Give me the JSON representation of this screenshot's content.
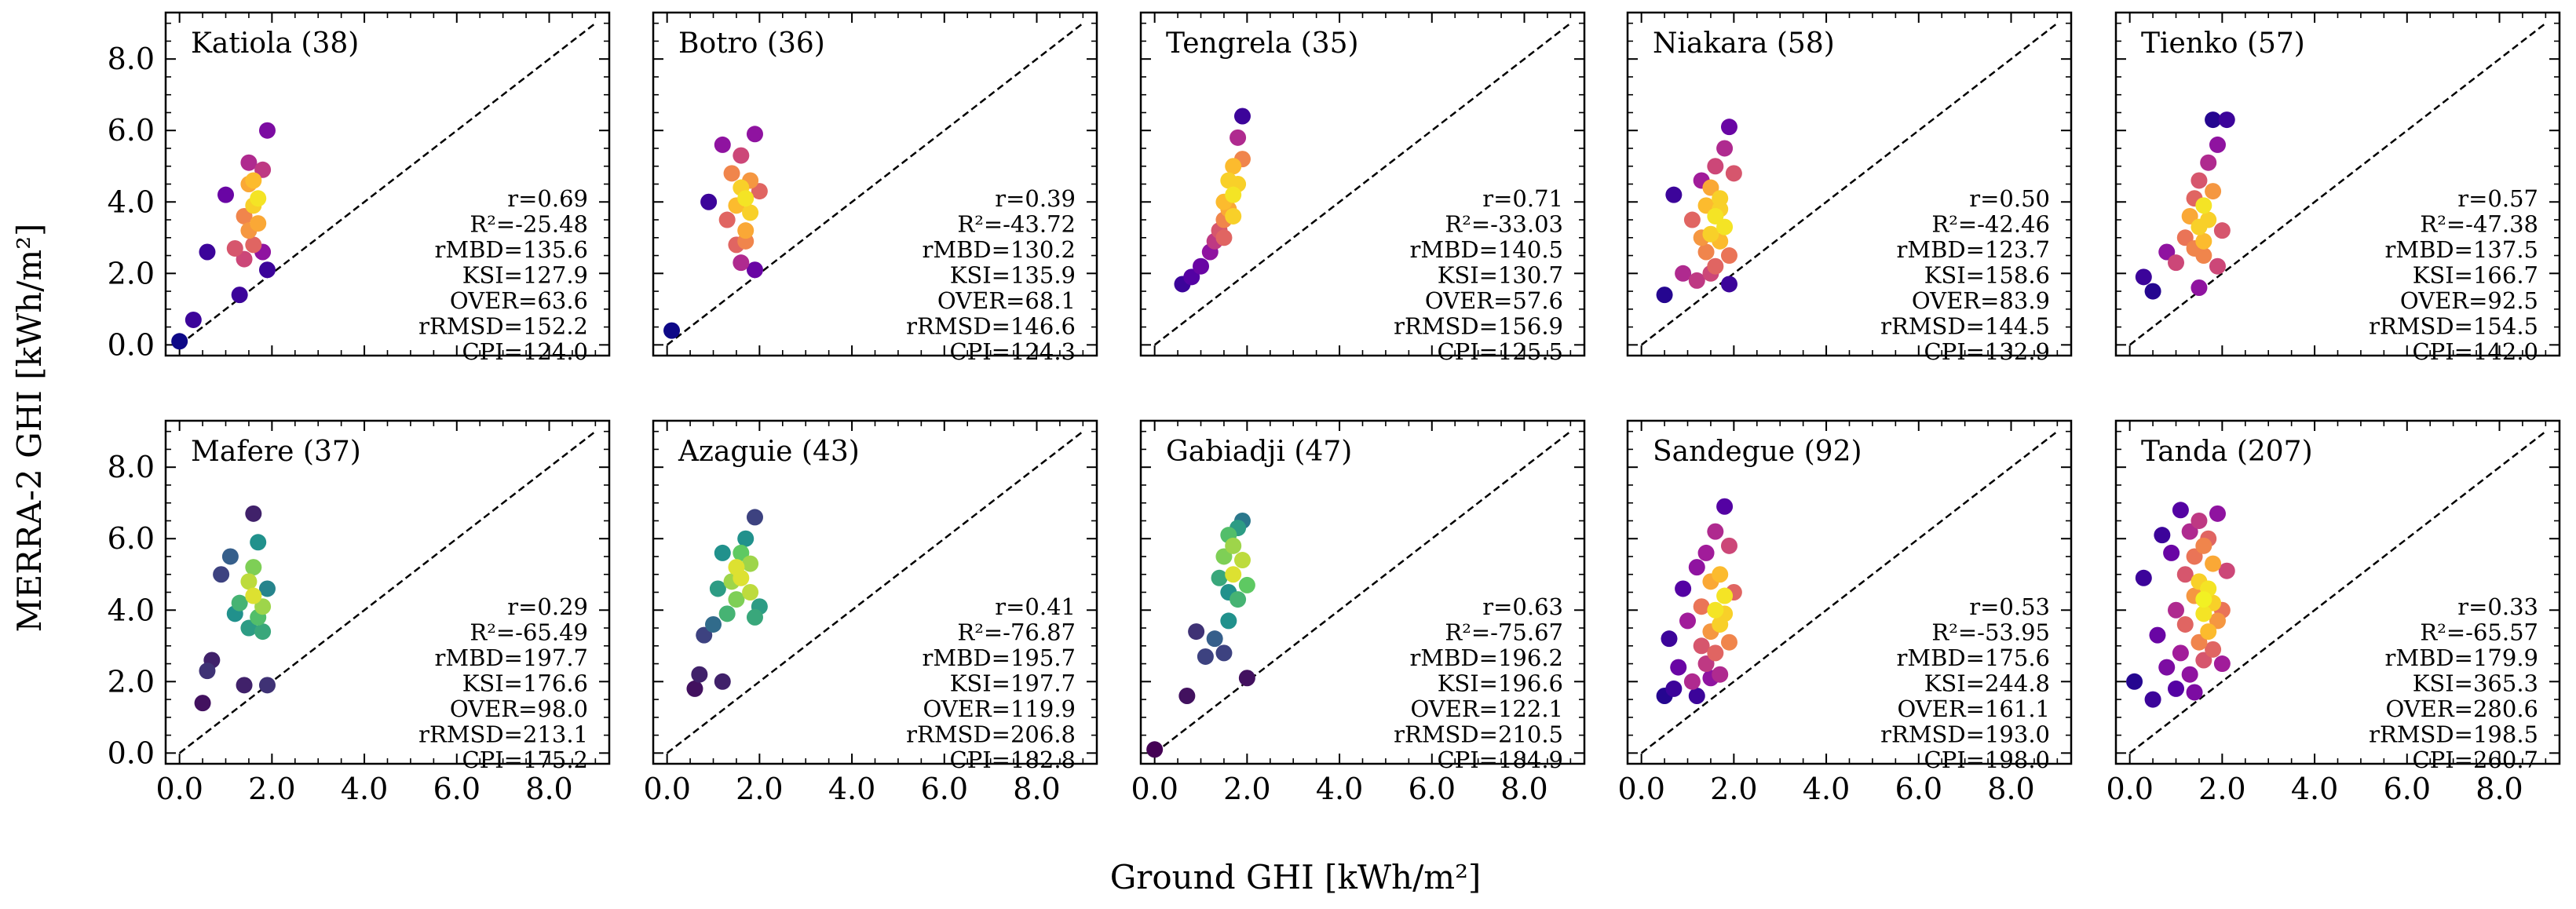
{
  "figure": {
    "xlabel": "Ground GHI [kWh/m²]",
    "ylabel": "MERRA-2 GHI [kWh/m²]",
    "tick_labels": [
      "0.0",
      "2.0",
      "4.0",
      "6.0",
      "8.0"
    ]
  },
  "colors": {
    "background": "#ffffff",
    "axis": "#000000",
    "identity_line": "#000000",
    "density_colormap": "plasma",
    "colormap_stops": [
      "#0d0887",
      "#5c01a6",
      "#9c179e",
      "#cc4778",
      "#ed7953",
      "#fdb42f",
      "#f0f921"
    ],
    "colormap_high_density_mafere_azaguie_gabiadji": [
      "#440154",
      "#3b528b",
      "#21918c",
      "#5ec962",
      "#fde725"
    ]
  },
  "chart_data": [
    {
      "type": "scatter",
      "title": "Katiola (38)",
      "xlim": [
        -0.3,
        9.3
      ],
      "ylim": [
        -0.3,
        9.3
      ],
      "identity_line": [
        0,
        9
      ],
      "x": [
        0.0,
        0.3,
        0.6,
        1.0,
        1.2,
        1.3,
        1.4,
        1.4,
        1.5,
        1.5,
        1.5,
        1.6,
        1.6,
        1.6,
        1.7,
        1.7,
        1.8,
        1.8,
        1.9,
        1.9
      ],
      "y": [
        0.1,
        0.7,
        2.6,
        4.2,
        2.7,
        1.4,
        3.6,
        2.4,
        4.5,
        3.2,
        5.1,
        3.9,
        2.8,
        4.6,
        4.1,
        3.4,
        4.9,
        2.6,
        6.0,
        2.1
      ],
      "density": [
        0.0,
        0.1,
        0.1,
        0.2,
        0.55,
        0.1,
        0.7,
        0.5,
        0.8,
        0.75,
        0.4,
        0.9,
        0.6,
        0.85,
        0.95,
        0.8,
        0.45,
        0.3,
        0.25,
        0.1
      ],
      "stats": [
        "r=0.69",
        "R²=-25.48",
        "rMBD=135.6",
        "KSI=127.9",
        "OVER=63.6",
        "rRMSD=152.2",
        "CPI=124.0"
      ]
    },
    {
      "type": "scatter",
      "title": "Botro (36)",
      "xlim": [
        -0.3,
        9.3
      ],
      "ylim": [
        -0.3,
        9.3
      ],
      "identity_line": [
        0,
        9
      ],
      "x": [
        0.1,
        0.9,
        1.2,
        1.3,
        1.4,
        1.5,
        1.5,
        1.6,
        1.6,
        1.7,
        1.7,
        1.8,
        1.8,
        1.9,
        1.9,
        2.0,
        1.7,
        1.6
      ],
      "y": [
        0.4,
        4.0,
        5.6,
        3.5,
        4.8,
        2.8,
        3.9,
        5.3,
        4.4,
        3.2,
        4.1,
        3.7,
        4.6,
        5.9,
        2.1,
        4.3,
        2.9,
        2.3
      ],
      "density": [
        0.0,
        0.1,
        0.3,
        0.6,
        0.7,
        0.6,
        0.85,
        0.5,
        0.9,
        0.8,
        0.95,
        0.9,
        0.75,
        0.3,
        0.2,
        0.6,
        0.7,
        0.4
      ],
      "stats": [
        "r=0.39",
        "R²=-43.72",
        "rMBD=130.2",
        "KSI=135.9",
        "OVER=68.1",
        "rRMSD=146.6",
        "CPI=124.3"
      ]
    },
    {
      "type": "scatter",
      "title": "Tengrela (35)",
      "xlim": [
        -0.3,
        9.3
      ],
      "ylim": [
        -0.3,
        9.3
      ],
      "identity_line": [
        0,
        9
      ],
      "x": [
        0.6,
        0.8,
        1.0,
        1.2,
        1.3,
        1.4,
        1.5,
        1.5,
        1.6,
        1.6,
        1.7,
        1.7,
        1.8,
        1.8,
        1.9,
        1.9,
        1.5,
        1.7
      ],
      "y": [
        1.7,
        1.9,
        2.2,
        2.6,
        2.9,
        3.2,
        3.5,
        4.0,
        3.8,
        4.6,
        4.2,
        5.0,
        4.5,
        5.8,
        6.4,
        5.2,
        3.0,
        3.6
      ],
      "density": [
        0.1,
        0.15,
        0.2,
        0.3,
        0.45,
        0.55,
        0.7,
        0.85,
        0.8,
        0.9,
        0.95,
        0.85,
        0.9,
        0.4,
        0.1,
        0.7,
        0.6,
        0.9
      ],
      "stats": [
        "r=0.71",
        "R²=-33.03",
        "rMBD=140.5",
        "KSI=130.7",
        "OVER=57.6",
        "rRMSD=156.9",
        "CPI=125.5"
      ]
    },
    {
      "type": "scatter",
      "title": "Niakara (58)",
      "xlim": [
        -0.3,
        9.3
      ],
      "ylim": [
        -0.3,
        9.3
      ],
      "identity_line": [
        0,
        9
      ],
      "x": [
        0.5,
        0.7,
        0.9,
        1.1,
        1.2,
        1.3,
        1.4,
        1.4,
        1.5,
        1.5,
        1.6,
        1.6,
        1.6,
        1.7,
        1.7,
        1.8,
        1.8,
        1.9,
        1.9,
        2.0,
        1.5,
        1.7,
        1.3,
        1.9
      ],
      "y": [
        1.4,
        4.2,
        2.0,
        3.5,
        1.8,
        4.6,
        2.6,
        3.9,
        3.1,
        4.4,
        2.2,
        3.6,
        5.0,
        2.9,
        4.1,
        3.3,
        5.5,
        6.1,
        1.7,
        4.8,
        2.0,
        3.8,
        3.0,
        2.5
      ],
      "density": [
        0.05,
        0.1,
        0.4,
        0.6,
        0.45,
        0.35,
        0.7,
        0.85,
        0.9,
        0.8,
        0.6,
        0.95,
        0.5,
        0.85,
        0.9,
        0.95,
        0.4,
        0.2,
        0.1,
        0.55,
        0.5,
        0.9,
        0.75,
        0.65
      ],
      "stats": [
        "r=0.50",
        "R²=-42.46",
        "rMBD=123.7",
        "KSI=158.6",
        "OVER=83.9",
        "rRMSD=144.5",
        "CPI=132.9"
      ]
    },
    {
      "type": "scatter",
      "title": "Tienko (57)",
      "xlim": [
        -0.3,
        9.3
      ],
      "ylim": [
        -0.3,
        9.3
      ],
      "identity_line": [
        0,
        9
      ],
      "x": [
        0.3,
        0.5,
        0.8,
        1.0,
        1.2,
        1.3,
        1.4,
        1.4,
        1.5,
        1.5,
        1.6,
        1.6,
        1.7,
        1.7,
        1.8,
        1.8,
        1.9,
        1.9,
        2.0,
        2.1,
        1.6,
        1.5
      ],
      "y": [
        1.9,
        1.5,
        2.6,
        2.3,
        3.0,
        3.6,
        2.7,
        4.1,
        3.3,
        4.6,
        2.9,
        3.9,
        3.5,
        5.1,
        4.3,
        6.3,
        2.2,
        5.6,
        3.2,
        6.3,
        2.5,
        1.6
      ],
      "density": [
        0.1,
        0.05,
        0.3,
        0.5,
        0.65,
        0.8,
        0.7,
        0.6,
        0.9,
        0.55,
        0.85,
        0.95,
        0.9,
        0.4,
        0.75,
        0.05,
        0.5,
        0.3,
        0.55,
        0.1,
        0.7,
        0.3
      ],
      "stats": [
        "r=0.57",
        "R²=-47.38",
        "rMBD=137.5",
        "KSI=166.7",
        "OVER=92.5",
        "rRMSD=154.5",
        "CPI=142.0"
      ]
    },
    {
      "type": "scatter",
      "title": "Mafere (37)",
      "xlim": [
        -0.3,
        9.3
      ],
      "ylim": [
        -0.3,
        9.3
      ],
      "identity_line": [
        0,
        9
      ],
      "colormap": "viridis",
      "x": [
        0.5,
        0.7,
        0.9,
        1.1,
        1.2,
        1.3,
        1.4,
        1.5,
        1.5,
        1.6,
        1.6,
        1.7,
        1.7,
        1.8,
        1.8,
        1.9,
        1.6,
        0.6,
        1.9
      ],
      "y": [
        1.4,
        2.6,
        5.0,
        5.5,
        3.9,
        4.2,
        1.9,
        4.8,
        3.5,
        5.2,
        4.4,
        3.8,
        5.9,
        4.1,
        3.4,
        4.6,
        6.7,
        2.3,
        1.9
      ],
      "density": [
        0.05,
        0.1,
        0.2,
        0.3,
        0.5,
        0.65,
        0.1,
        0.9,
        0.55,
        0.8,
        0.95,
        0.7,
        0.5,
        0.85,
        0.6,
        0.45,
        0.1,
        0.15,
        0.15
      ],
      "stats": [
        "r=0.29",
        "R²=-65.49",
        "rMBD=197.7",
        "KSI=176.6",
        "OVER=98.0",
        "rRMSD=213.1",
        "CPI=175.2"
      ]
    },
    {
      "type": "scatter",
      "title": "Azaguie (43)",
      "xlim": [
        -0.3,
        9.3
      ],
      "ylim": [
        -0.3,
        9.3
      ],
      "identity_line": [
        0,
        9
      ],
      "colormap": "viridis",
      "x": [
        0.6,
        0.8,
        1.0,
        1.1,
        1.2,
        1.3,
        1.4,
        1.5,
        1.5,
        1.6,
        1.6,
        1.7,
        1.8,
        1.8,
        1.9,
        1.9,
        2.0,
        1.2,
        0.7
      ],
      "y": [
        1.8,
        3.3,
        3.6,
        4.6,
        5.6,
        3.9,
        4.8,
        5.2,
        4.3,
        5.6,
        4.9,
        6.0,
        4.5,
        5.3,
        3.8,
        6.6,
        4.1,
        2.0,
        2.2
      ],
      "density": [
        0.05,
        0.2,
        0.35,
        0.55,
        0.5,
        0.65,
        0.85,
        0.95,
        0.8,
        0.75,
        0.95,
        0.5,
        0.9,
        0.85,
        0.6,
        0.2,
        0.55,
        0.1,
        0.1
      ],
      "stats": [
        "r=0.41",
        "R²=-76.87",
        "rMBD=195.7",
        "KSI=197.7",
        "OVER=119.9",
        "rRMSD=206.8",
        "CPI=182.8"
      ]
    },
    {
      "type": "scatter",
      "title": "Gabiadji (47)",
      "xlim": [
        -0.3,
        9.3
      ],
      "ylim": [
        -0.3,
        9.3
      ],
      "identity_line": [
        0,
        9
      ],
      "colormap": "viridis",
      "x": [
        0.0,
        0.7,
        0.9,
        1.1,
        1.3,
        1.4,
        1.5,
        1.6,
        1.6,
        1.7,
        1.7,
        1.8,
        1.8,
        1.9,
        1.9,
        2.0,
        2.0,
        1.5,
        1.6
      ],
      "y": [
        0.1,
        1.6,
        3.4,
        2.7,
        3.2,
        4.9,
        5.5,
        3.7,
        6.1,
        5.0,
        5.8,
        4.3,
        6.3,
        5.4,
        6.5,
        4.7,
        2.1,
        2.8,
        4.5
      ],
      "density": [
        0.0,
        0.05,
        0.15,
        0.2,
        0.3,
        0.6,
        0.8,
        0.5,
        0.7,
        0.95,
        0.85,
        0.65,
        0.55,
        0.9,
        0.4,
        0.75,
        0.05,
        0.2,
        0.5
      ],
      "stats": [
        "r=0.63",
        "R²=-75.67",
        "rMBD=196.2",
        "KSI=196.6",
        "OVER=122.1",
        "rRMSD=210.5",
        "CPI=184.9"
      ]
    },
    {
      "type": "scatter",
      "title": "Sandegue (92)",
      "xlim": [
        -0.3,
        9.3
      ],
      "ylim": [
        -0.3,
        9.3
      ],
      "identity_line": [
        0,
        9
      ],
      "x": [
        0.5,
        0.6,
        0.8,
        0.9,
        1.0,
        1.1,
        1.2,
        1.3,
        1.3,
        1.4,
        1.4,
        1.5,
        1.5,
        1.6,
        1.6,
        1.6,
        1.7,
        1.7,
        1.7,
        1.8,
        1.8,
        1.9,
        1.9,
        2.0,
        1.2,
        1.5,
        0.7,
        1.8
      ],
      "y": [
        1.6,
        3.2,
        2.4,
        4.6,
        3.7,
        2.0,
        5.2,
        3.0,
        4.1,
        2.5,
        5.6,
        3.4,
        4.8,
        2.8,
        4.0,
        6.2,
        3.6,
        5.0,
        2.2,
        4.4,
        6.9,
        3.1,
        5.8,
        4.5,
        1.6,
        2.1,
        1.8,
        3.9
      ],
      "density": [
        0.05,
        0.1,
        0.2,
        0.15,
        0.35,
        0.4,
        0.3,
        0.55,
        0.65,
        0.45,
        0.35,
        0.75,
        0.8,
        0.6,
        0.95,
        0.4,
        0.9,
        0.85,
        0.4,
        0.95,
        0.15,
        0.7,
        0.5,
        0.6,
        0.1,
        0.3,
        0.1,
        0.9
      ],
      "stats": [
        "r=0.53",
        "R²=-53.95",
        "rMBD=175.6",
        "KSI=244.8",
        "OVER=161.1",
        "rRMSD=193.0",
        "CPI=198.0"
      ]
    },
    {
      "type": "scatter",
      "title": "Tanda (207)",
      "xlim": [
        -0.3,
        9.3
      ],
      "ylim": [
        -0.3,
        9.3
      ],
      "identity_line": [
        0,
        9
      ],
      "x": [
        0.1,
        0.3,
        0.5,
        0.6,
        0.8,
        0.9,
        1.0,
        1.1,
        1.1,
        1.2,
        1.2,
        1.3,
        1.3,
        1.4,
        1.4,
        1.5,
        1.5,
        1.5,
        1.6,
        1.6,
        1.6,
        1.7,
        1.7,
        1.7,
        1.8,
        1.8,
        1.8,
        1.9,
        1.9,
        2.0,
        2.0,
        2.1,
        1.0,
        1.4,
        0.7,
        1.6
      ],
      "y": [
        2.0,
        4.9,
        1.5,
        3.3,
        2.4,
        5.6,
        4.0,
        6.8,
        2.8,
        5.0,
        3.6,
        6.2,
        2.2,
        4.4,
        5.5,
        3.1,
        4.8,
        6.5,
        2.6,
        3.9,
        5.8,
        3.4,
        4.6,
        6.0,
        2.9,
        4.2,
        5.3,
        3.7,
        6.7,
        4.0,
        2.5,
        5.1,
        1.8,
        1.7,
        6.1,
        4.3
      ],
      "density": [
        0.05,
        0.1,
        0.1,
        0.2,
        0.25,
        0.2,
        0.4,
        0.15,
        0.35,
        0.55,
        0.6,
        0.4,
        0.3,
        0.75,
        0.65,
        0.7,
        0.9,
        0.45,
        0.55,
        0.95,
        0.7,
        0.85,
        0.95,
        0.6,
        0.6,
        0.9,
        0.8,
        0.75,
        0.3,
        0.65,
        0.35,
        0.5,
        0.15,
        0.25,
        0.1,
        0.98
      ],
      "stats": [
        "r=0.33",
        "R²=-65.57",
        "rMBD=179.9",
        "KSI=365.3",
        "OVER=280.6",
        "rRMSD=198.5",
        "CPI=260.7"
      ]
    }
  ]
}
